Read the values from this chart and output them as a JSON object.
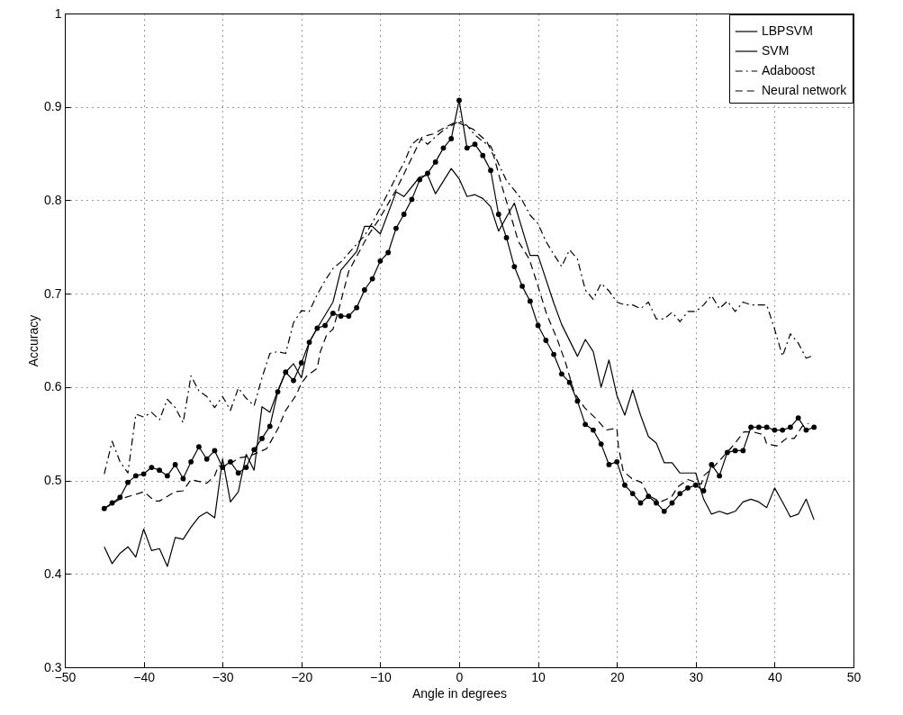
{
  "chart_data": {
    "type": "line",
    "xlabel": "Angle in degrees",
    "ylabel": "Accuracy",
    "xlim": [
      -50,
      50
    ],
    "ylim": [
      0.3,
      1
    ],
    "xticks": [
      -50,
      -40,
      -30,
      -20,
      -10,
      0,
      10,
      20,
      30,
      40,
      50
    ],
    "yticks": [
      0.3,
      0.4,
      0.5,
      0.6,
      0.7,
      0.8,
      0.9,
      1
    ],
    "grid": true,
    "legend": "top right",
    "series": [
      {
        "name": "LBPSVM",
        "color": "#000000",
        "line_style": "solid",
        "x": [
          -45,
          -44,
          -43,
          -42,
          -41,
          -40,
          -39,
          -38,
          -37,
          -36,
          -35,
          -34,
          -33,
          -32,
          -31,
          -30,
          -29,
          -28,
          -27,
          -26,
          -25,
          -24,
          -23,
          -22,
          -21,
          -20,
          -19,
          -18,
          -16,
          -15,
          -13,
          -12,
          -11,
          -10,
          -8,
          -7,
          -5,
          -4,
          -3,
          -1,
          0,
          1,
          2,
          3,
          4,
          5,
          7,
          8,
          9,
          10,
          12,
          13,
          15,
          16,
          17,
          18,
          19,
          20,
          21,
          22,
          23,
          24,
          25,
          26,
          27,
          28,
          30,
          31,
          32,
          33,
          34,
          35,
          36,
          37,
          38,
          39,
          40,
          41,
          42,
          43,
          44,
          45
        ],
        "values": [
          0.429,
          0.411,
          0.422,
          0.429,
          0.418,
          0.448,
          0.425,
          0.427,
          0.408,
          0.439,
          0.437,
          0.45,
          0.461,
          0.466,
          0.46,
          0.523,
          0.477,
          0.488,
          0.528,
          0.511,
          0.579,
          0.573,
          0.596,
          0.616,
          0.625,
          0.61,
          0.648,
          0.663,
          0.691,
          0.725,
          0.745,
          0.772,
          0.772,
          0.764,
          0.809,
          0.804,
          0.825,
          0.827,
          0.807,
          0.834,
          0.823,
          0.804,
          0.806,
          0.802,
          0.793,
          0.767,
          0.797,
          0.769,
          0.741,
          0.741,
          0.69,
          0.667,
          0.633,
          0.651,
          0.638,
          0.6,
          0.629,
          0.591,
          0.57,
          0.597,
          0.57,
          0.547,
          0.54,
          0.519,
          0.519,
          0.508,
          0.508,
          0.48,
          0.464,
          0.467,
          0.464,
          0.467,
          0.477,
          0.48,
          0.477,
          0.471,
          0.492,
          0.477,
          0.461,
          0.464,
          0.48,
          0.458
        ]
      },
      {
        "name": "SVM",
        "color": "#000000",
        "line_style": "solid",
        "marker": "circle",
        "x": [
          -45,
          -44,
          -43,
          -42,
          -41,
          -40,
          -39,
          -38,
          -37,
          -36,
          -35,
          -34,
          -33,
          -32,
          -31,
          -30,
          -29,
          -28,
          -27,
          -26,
          -25,
          -24,
          -23,
          -22,
          -21,
          -20,
          -19,
          -18,
          -17,
          -16,
          -15,
          -14,
          -13,
          -12,
          -11,
          -10,
          -9,
          -8,
          -7,
          -6,
          -5,
          -4,
          -3,
          -2,
          -1,
          0,
          1,
          2,
          3,
          4,
          5,
          6,
          7,
          8,
          9,
          10,
          11,
          12,
          13,
          14,
          15,
          16,
          17,
          18,
          19,
          20,
          21,
          22,
          23,
          24,
          25,
          26,
          27,
          28,
          29,
          30,
          31,
          32,
          33,
          34,
          35,
          36,
          37,
          38,
          39,
          40,
          41,
          42,
          43,
          44,
          45
        ],
        "values": [
          0.47,
          0.476,
          0.482,
          0.498,
          0.505,
          0.507,
          0.514,
          0.511,
          0.505,
          0.517,
          0.502,
          0.52,
          0.536,
          0.523,
          0.532,
          0.514,
          0.52,
          0.508,
          0.514,
          0.533,
          0.545,
          0.558,
          0.595,
          0.616,
          0.607,
          0.626,
          0.648,
          0.663,
          0.666,
          0.679,
          0.676,
          0.676,
          0.685,
          0.704,
          0.716,
          0.735,
          0.744,
          0.77,
          0.785,
          0.801,
          0.822,
          0.829,
          0.841,
          0.856,
          0.866,
          0.907,
          0.856,
          0.86,
          0.848,
          0.832,
          0.785,
          0.76,
          0.729,
          0.708,
          0.692,
          0.666,
          0.65,
          0.635,
          0.614,
          0.605,
          0.585,
          0.56,
          0.554,
          0.539,
          0.517,
          0.52,
          0.495,
          0.486,
          0.476,
          0.483,
          0.476,
          0.467,
          0.476,
          0.486,
          0.492,
          0.495,
          0.489,
          0.517,
          0.505,
          0.53,
          0.532,
          0.532,
          0.557,
          0.557,
          0.557,
          0.554,
          0.554,
          0.557,
          0.567,
          0.554,
          0.557
        ]
      },
      {
        "name": "Adaboost",
        "color": "#000000",
        "line_style": "dashdot",
        "x": [
          -45,
          -44,
          -43,
          -42,
          -41,
          -40,
          -39,
          -38,
          -37,
          -36,
          -35,
          -34,
          -33,
          -32,
          -31,
          -30,
          -29,
          -28,
          -27,
          -26,
          -25,
          -24,
          -23,
          -22,
          -21,
          -20,
          -19,
          -18,
          -17,
          -16,
          -15,
          -13,
          -12,
          -11,
          -10,
          -9,
          -8,
          -7,
          -6,
          -5,
          -4,
          -3,
          -2,
          -1,
          0,
          1,
          2,
          3,
          4,
          5,
          6,
          7,
          8,
          9,
          10,
          11,
          12,
          13,
          14,
          15,
          16,
          17,
          18,
          19,
          20,
          21,
          22,
          23,
          24,
          25,
          26,
          27,
          28,
          29,
          30,
          31,
          32,
          33,
          34,
          35,
          36,
          37,
          38,
          39,
          40,
          41,
          42,
          43,
          44,
          45
        ],
        "values": [
          0.507,
          0.542,
          0.52,
          0.508,
          0.571,
          0.568,
          0.573,
          0.565,
          0.587,
          0.578,
          0.562,
          0.612,
          0.596,
          0.59,
          0.578,
          0.59,
          0.575,
          0.599,
          0.588,
          0.58,
          0.61,
          0.636,
          0.638,
          0.636,
          0.669,
          0.682,
          0.681,
          0.699,
          0.714,
          0.727,
          0.734,
          0.753,
          0.762,
          0.776,
          0.792,
          0.808,
          0.825,
          0.84,
          0.86,
          0.867,
          0.86,
          0.868,
          0.875,
          0.88,
          0.885,
          0.88,
          0.87,
          0.863,
          0.858,
          0.839,
          0.821,
          0.811,
          0.8,
          0.784,
          0.775,
          0.756,
          0.742,
          0.729,
          0.747,
          0.737,
          0.704,
          0.694,
          0.711,
          0.703,
          0.691,
          0.688,
          0.688,
          0.684,
          0.691,
          0.673,
          0.673,
          0.68,
          0.67,
          0.681,
          0.681,
          0.688,
          0.698,
          0.684,
          0.692,
          0.681,
          0.691,
          0.688,
          0.688,
          0.688,
          0.662,
          0.633,
          0.657,
          0.647,
          0.631,
          0.634
        ]
      },
      {
        "name": "Neural network",
        "color": "#000000",
        "line_style": "dashed",
        "x": [
          -45,
          -43,
          -40.7,
          -40,
          -38.6,
          -38,
          -36,
          -35,
          -34,
          -32,
          -31,
          -30.5,
          -30,
          -29,
          -28,
          -26.6,
          -24.4,
          -23,
          -22,
          -20.7,
          -20,
          -19.3,
          -18,
          -17.6,
          -16.8,
          -16,
          -15.3,
          -14,
          -12.8,
          -11.5,
          -10.2,
          -9.1,
          -8,
          -4.7,
          -3.3,
          -1.8,
          -0.4,
          1.8,
          3.5,
          4.4,
          5.5,
          6.6,
          7.5,
          8.9,
          10,
          11.1,
          12.4,
          13.5,
          14.6,
          15.9,
          17.5,
          18.6,
          20,
          20.2,
          20.8,
          21.9,
          23.1,
          24,
          25.5,
          26.9,
          27.7,
          29,
          30.7,
          31,
          32.1,
          33.2,
          34.6,
          36.1,
          37.3,
          38.6,
          39,
          40.3,
          41.5,
          42.5,
          43.5,
          44.3
        ],
        "values": [
          0.47,
          0.48,
          0.486,
          0.488,
          0.478,
          0.478,
          0.488,
          0.489,
          0.501,
          0.497,
          0.505,
          0.516,
          0.515,
          0.518,
          0.524,
          0.526,
          0.534,
          0.555,
          0.575,
          0.591,
          0.604,
          0.612,
          0.62,
          0.638,
          0.656,
          0.662,
          0.682,
          0.724,
          0.743,
          0.763,
          0.779,
          0.795,
          0.811,
          0.868,
          0.871,
          0.878,
          0.884,
          0.876,
          0.863,
          0.847,
          0.813,
          0.782,
          0.756,
          0.737,
          0.708,
          0.678,
          0.652,
          0.626,
          0.594,
          0.578,
          0.565,
          0.554,
          0.556,
          0.536,
          0.51,
          0.502,
          0.498,
          0.484,
          0.477,
          0.482,
          0.493,
          0.501,
          0.496,
          0.505,
          0.513,
          0.523,
          0.536,
          0.552,
          0.552,
          0.549,
          0.539,
          0.537,
          0.545,
          0.545,
          0.558,
          0.561
        ]
      }
    ]
  }
}
